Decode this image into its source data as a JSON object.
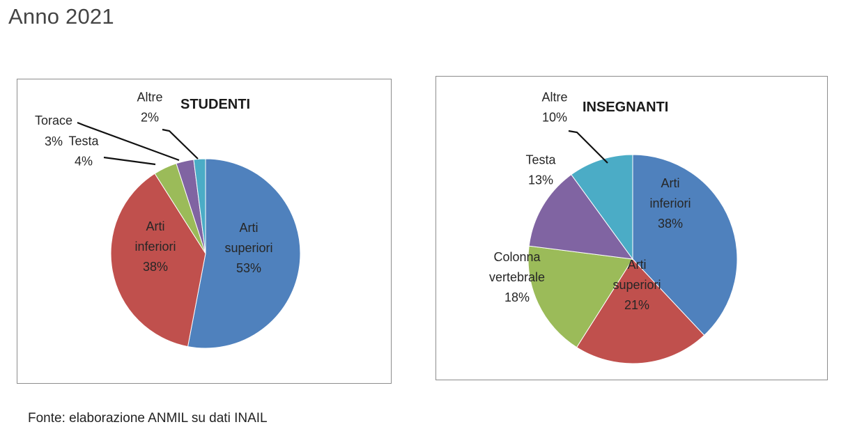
{
  "page": {
    "title": "Anno 2021",
    "source": "Fonte: elaborazione ANMIL su dati INAIL"
  },
  "chart_data": [
    {
      "type": "pie",
      "title": "STUDENTI",
      "slices": [
        {
          "label": "Arti superiori",
          "label_lines": [
            "Arti",
            "superiori"
          ],
          "value": 53,
          "value_text": "53%",
          "color": "#4f81bd"
        },
        {
          "label": "Arti inferiori",
          "label_lines": [
            "Arti",
            "inferiori"
          ],
          "value": 38,
          "value_text": "38%",
          "color": "#c0504d"
        },
        {
          "label": "Testa",
          "label_lines": [
            "Testa"
          ],
          "value": 4,
          "value_text": "4%",
          "color": "#9bbb59"
        },
        {
          "label": "Torace",
          "label_lines": [
            "Torace"
          ],
          "value": 3,
          "value_text": "3%",
          "color": "#8064a2"
        },
        {
          "label": "Altre",
          "label_lines": [
            "Altre"
          ],
          "value": 2,
          "value_text": "2%",
          "color": "#4bacc6"
        }
      ]
    },
    {
      "type": "pie",
      "title": "INSEGNANTI",
      "slices": [
        {
          "label": "Arti inferiori",
          "label_lines": [
            "Arti",
            "inferiori"
          ],
          "value": 38,
          "value_text": "38%",
          "color": "#4f81bd"
        },
        {
          "label": "Arti superiori",
          "label_lines": [
            "Arti",
            "superiori"
          ],
          "value": 21,
          "value_text": "21%",
          "color": "#c0504d"
        },
        {
          "label": "Colonna vertebrale",
          "label_lines": [
            "Colonna",
            "vertebrale"
          ],
          "value": 18,
          "value_text": "18%",
          "color": "#9bbb59"
        },
        {
          "label": "Testa",
          "label_lines": [
            "Testa"
          ],
          "value": 13,
          "value_text": "13%",
          "color": "#8064a2"
        },
        {
          "label": "Altre",
          "label_lines": [
            "Altre"
          ],
          "value": 10,
          "value_text": "10%",
          "color": "#4bacc6"
        }
      ]
    }
  ]
}
